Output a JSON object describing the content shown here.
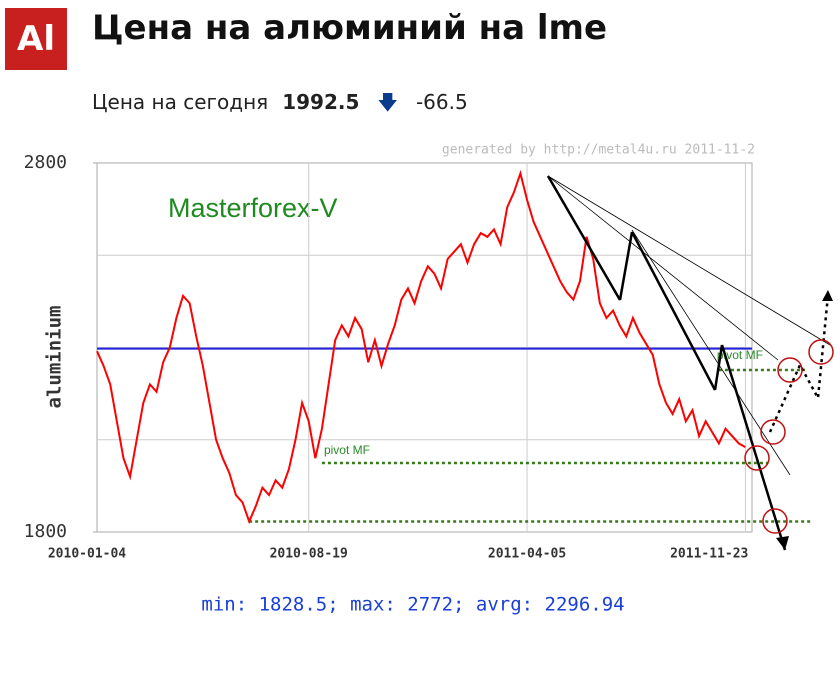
{
  "header": {
    "logo": "Al",
    "today_label": "Цена на сегодня",
    "price": "1992.5",
    "change": "-66.5"
  },
  "chart_data": {
    "type": "line",
    "title": "Цена на алюминий на lme",
    "watermark": "generated by http://metal4u.ru 2011-11-2",
    "ylabel": "aluminium",
    "annotation": "Masterforex-V",
    "stats": "min: 1828.5; max: 2772; avrg: 2296.94",
    "color": "#ff0000",
    "values": [
      2290,
      2250,
      2200,
      2100,
      2000,
      1950,
      2050,
      2150,
      2200,
      2180,
      2260,
      2300,
      2380,
      2440,
      2420,
      2330,
      2250,
      2150,
      2050,
      2000,
      1960,
      1900,
      1880,
      1828.5,
      1870,
      1920,
      1900,
      1940,
      1920,
      1970,
      2050,
      2150,
      2100,
      2000,
      2080,
      2200,
      2320,
      2360,
      2330,
      2380,
      2350,
      2260,
      2320,
      2250,
      2310,
      2360,
      2430,
      2460,
      2420,
      2480,
      2520,
      2500,
      2460,
      2540,
      2560,
      2580,
      2530,
      2580,
      2610,
      2600,
      2620,
      2580,
      2680,
      2720,
      2772,
      2700,
      2640,
      2600,
      2560,
      2520,
      2480,
      2450,
      2430,
      2480,
      2600,
      2540,
      2420,
      2380,
      2400,
      2360,
      2330,
      2380,
      2340,
      2310,
      2280,
      2200,
      2150,
      2120,
      2160,
      2100,
      2130,
      2060,
      2100,
      2070,
      2040,
      2080,
      2060,
      2040,
      2030
    ],
    "xlim": [
      0,
      99
    ],
    "xticks": [
      {
        "value": 0,
        "label": "2010-01-04"
      },
      {
        "value": 32,
        "label": "2010-08-19"
      },
      {
        "value": 65,
        "label": "2011-04-05"
      },
      {
        "value": 98,
        "label": "2011-11-23"
      }
    ],
    "ylim": [
      1800,
      2800
    ],
    "yticks": [
      1800,
      2800
    ],
    "ygrid": [
      2050,
      2300,
      2550
    ],
    "average_line": {
      "value": 2296.94,
      "color": "#2222dd"
    },
    "pivot_lines": [
      {
        "label": "pivot MF",
        "value": 1987,
        "from": 34
      },
      {
        "value": 1828.5,
        "from": 23
      },
      {
        "label": "pivot MF",
        "value": 2239,
        "from": 94
      }
    ],
    "grid": true
  }
}
